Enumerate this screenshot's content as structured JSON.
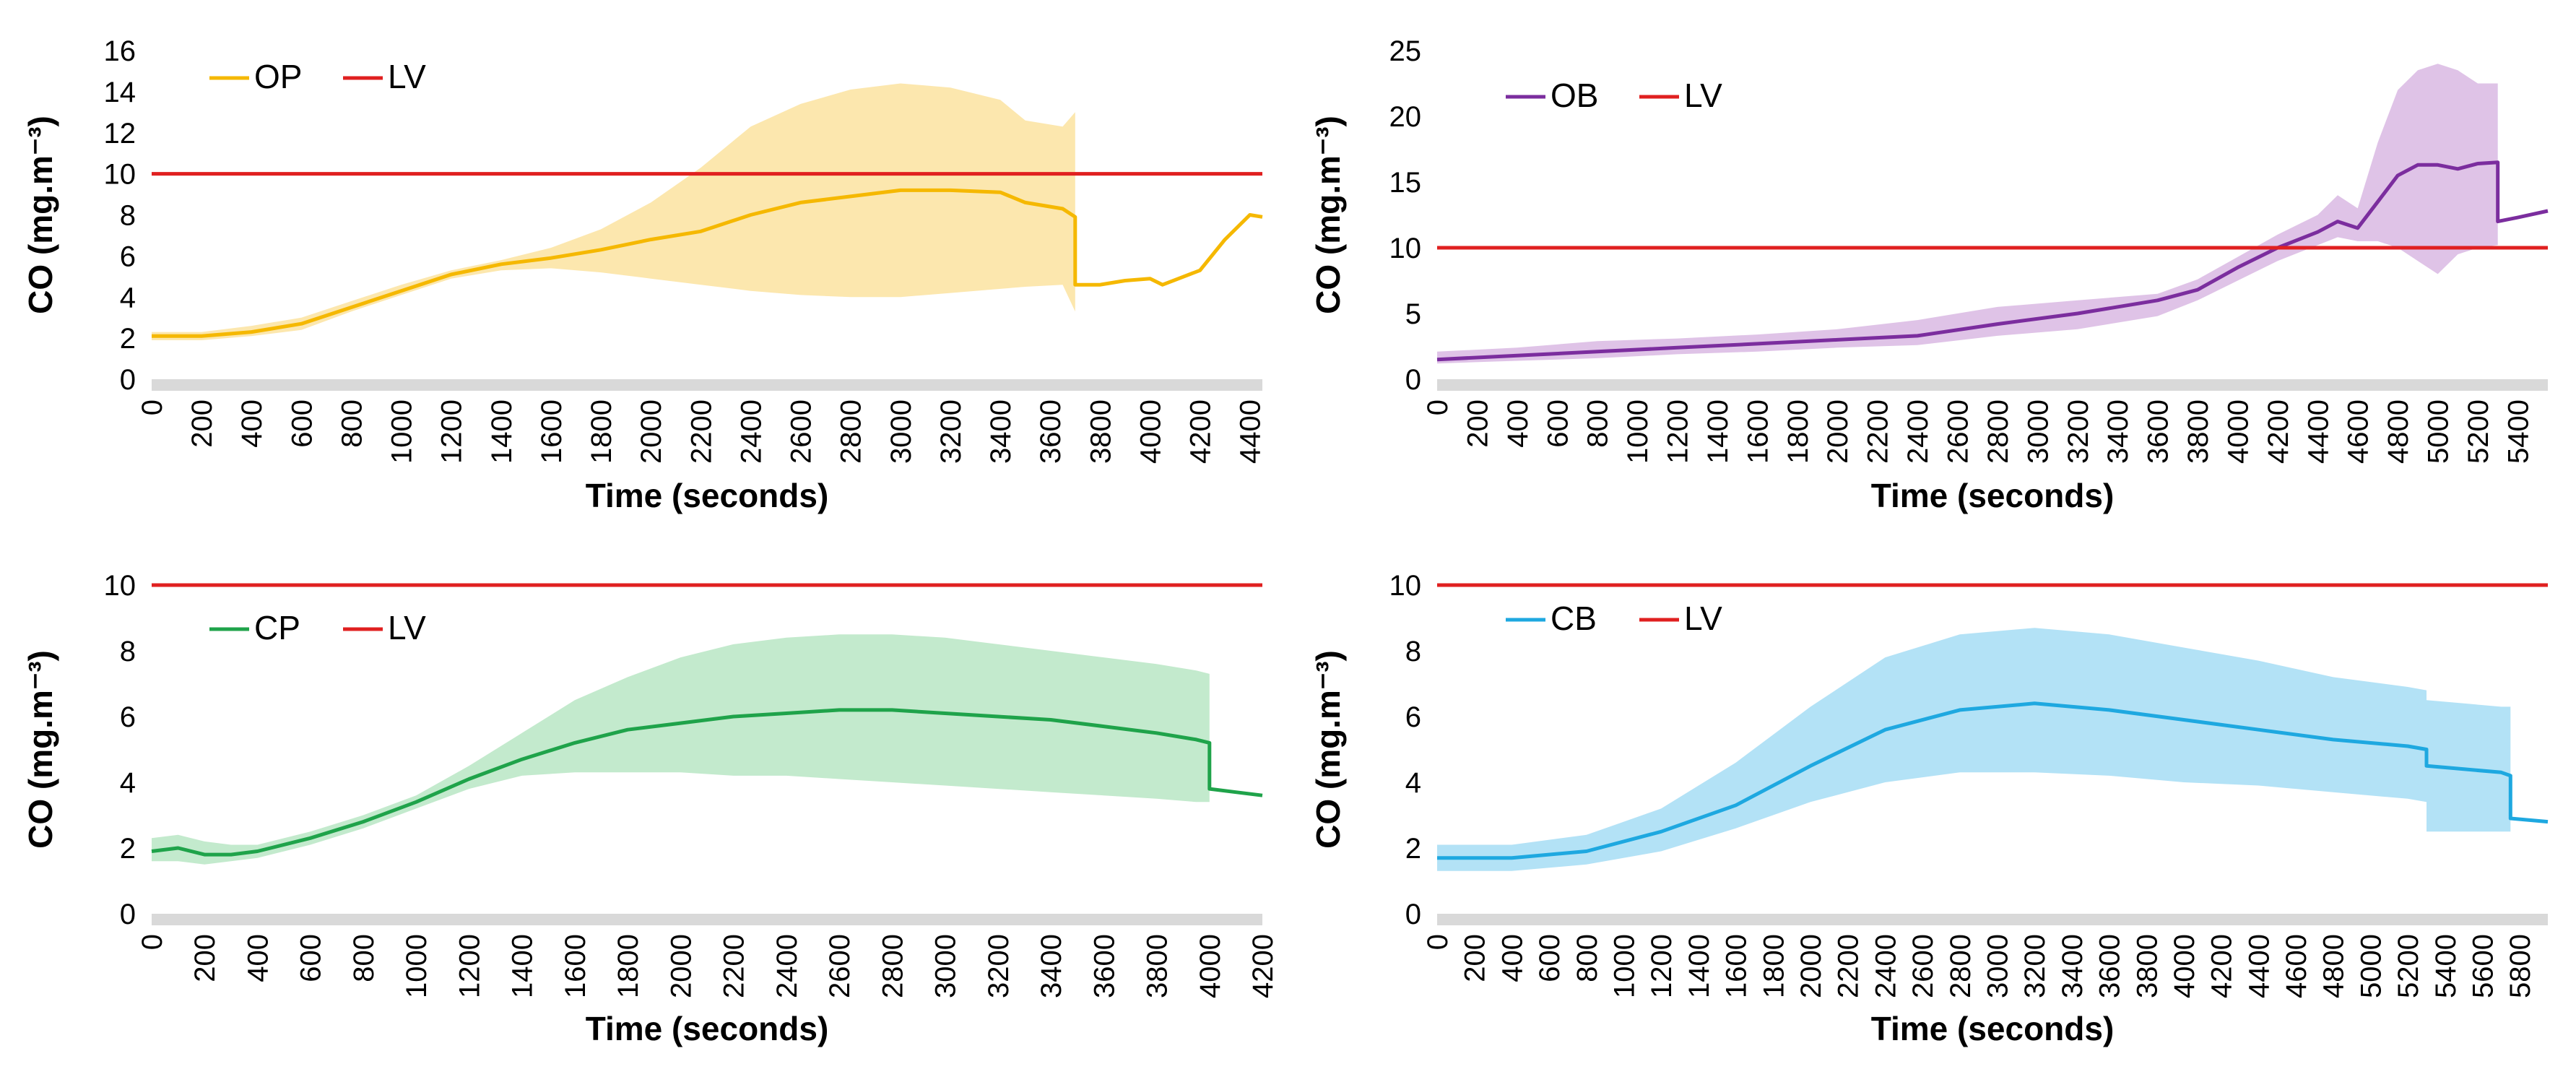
{
  "chart_data": [
    {
      "id": "op",
      "type": "line",
      "xlabel": "Time (seconds)",
      "ylabel": "CO (mg.m⁻³)",
      "xlim": [
        0,
        4450
      ],
      "ylim": [
        0,
        16
      ],
      "x_ticks": [
        "0",
        "200",
        "400",
        "600",
        "800",
        "1000",
        "1200",
        "1400",
        "1600",
        "1800",
        "2000",
        "2200",
        "2400",
        "2600",
        "2800",
        "3000",
        "3200",
        "3400",
        "3600",
        "3800",
        "4000",
        "4200",
        "4400"
      ],
      "y_ticks": [
        "0",
        "2",
        "4",
        "6",
        "8",
        "10",
        "12",
        "14",
        "16"
      ],
      "legend": [
        {
          "label": "OP",
          "color": "#F5B800"
        },
        {
          "label": "LV",
          "color": "#E02020"
        }
      ],
      "limit_value": 10,
      "series": [
        {
          "name": "OP",
          "color": "#F5B800",
          "band_color": "#FCE3A0",
          "x": [
            0,
            200,
            400,
            600,
            800,
            1000,
            1200,
            1400,
            1600,
            1800,
            2000,
            2200,
            2400,
            2600,
            2800,
            3000,
            3200,
            3400,
            3500,
            3650,
            3700,
            3700,
            3800,
            3900,
            4000,
            4050,
            4200,
            4300,
            4400,
            4450
          ],
          "y": [
            2.1,
            2.1,
            2.3,
            2.7,
            3.5,
            4.3,
            5.1,
            5.6,
            5.9,
            6.3,
            6.8,
            7.2,
            8.0,
            8.6,
            8.9,
            9.2,
            9.2,
            9.1,
            8.6,
            8.3,
            7.9,
            4.6,
            4.6,
            4.8,
            4.9,
            4.6,
            5.3,
            6.8,
            8.0,
            7.9
          ],
          "band_low": [
            1.9,
            1.9,
            2.1,
            2.4,
            3.3,
            4.1,
            4.9,
            5.3,
            5.4,
            5.2,
            4.9,
            4.6,
            4.3,
            4.1,
            4.0,
            4.0,
            4.2,
            4.4,
            4.5,
            4.6,
            3.3
          ],
          "band_high": [
            2.3,
            2.3,
            2.6,
            3.0,
            3.8,
            4.6,
            5.3,
            5.8,
            6.4,
            7.3,
            8.6,
            10.3,
            12.3,
            13.4,
            14.1,
            14.4,
            14.2,
            13.6,
            12.6,
            12.3,
            13.0
          ]
        }
      ]
    },
    {
      "id": "ob",
      "type": "line",
      "xlabel": "Time (seconds)",
      "ylabel": "CO (mg.m⁻³)",
      "xlim": [
        0,
        5550
      ],
      "ylim": [
        0,
        25
      ],
      "x_ticks": [
        "0",
        "200",
        "400",
        "600",
        "800",
        "1000",
        "1200",
        "1400",
        "1600",
        "1800",
        "2000",
        "2200",
        "2400",
        "2600",
        "2800",
        "3000",
        "3200",
        "3400",
        "3600",
        "3800",
        "4000",
        "4200",
        "4400",
        "4600",
        "4800",
        "5000",
        "5200",
        "5400"
      ],
      "y_ticks": [
        "0",
        "5",
        "10",
        "15",
        "20",
        "25"
      ],
      "legend": [
        {
          "label": "OB",
          "color": "#7B2D9E"
        },
        {
          "label": "LV",
          "color": "#E02020"
        }
      ],
      "limit_value": 10,
      "series": [
        {
          "name": "OB",
          "color": "#7B2D9E",
          "band_color": "#D9B8E3",
          "x": [
            0,
            400,
            800,
            1200,
            1600,
            2000,
            2400,
            2800,
            3200,
            3600,
            3800,
            4000,
            4200,
            4400,
            4500,
            4600,
            4700,
            4800,
            4900,
            5000,
            5100,
            5200,
            5300,
            5300,
            5400,
            5550
          ],
          "y": [
            1.5,
            1.8,
            2.1,
            2.4,
            2.7,
            3.0,
            3.3,
            4.2,
            5.0,
            6.0,
            6.8,
            8.5,
            10.0,
            11.2,
            12.0,
            11.5,
            13.5,
            15.5,
            16.3,
            16.3,
            16.0,
            16.4,
            16.5,
            12.0,
            12.3,
            12.8
          ],
          "band_low": [
            1.2,
            1.4,
            1.6,
            1.9,
            2.1,
            2.4,
            2.6,
            3.3,
            3.8,
            4.8,
            6.0,
            7.5,
            9.0,
            10.2,
            10.8,
            10.5,
            10.5,
            10.0,
            9.0,
            8.0,
            9.5,
            10.0,
            10.2
          ],
          "band_high": [
            2.1,
            2.4,
            2.9,
            3.1,
            3.4,
            3.8,
            4.5,
            5.5,
            6.0,
            6.5,
            7.6,
            9.3,
            11.0,
            12.5,
            14.0,
            13.0,
            18.0,
            22.0,
            23.5,
            24.0,
            23.5,
            22.5,
            22.5
          ]
        }
      ]
    },
    {
      "id": "cp",
      "type": "line",
      "xlabel": "Time (seconds)",
      "ylabel": "CO (mg.m⁻³)",
      "xlim": [
        0,
        4200
      ],
      "ylim": [
        0,
        10
      ],
      "x_ticks": [
        "0",
        "200",
        "400",
        "600",
        "800",
        "1000",
        "1200",
        "1400",
        "1600",
        "1800",
        "2000",
        "2200",
        "2400",
        "2600",
        "2800",
        "3000",
        "3200",
        "3400",
        "3600",
        "3800",
        "4000",
        "4200"
      ],
      "y_ticks": [
        "0",
        "2",
        "4",
        "6",
        "8",
        "10"
      ],
      "legend": [
        {
          "label": "CP",
          "color": "#1FA34A"
        },
        {
          "label": "LV",
          "color": "#E02020"
        }
      ],
      "limit_value": 10,
      "series": [
        {
          "name": "CP",
          "color": "#1FA34A",
          "band_color": "#B8E6C4",
          "x": [
            0,
            100,
            200,
            300,
            400,
            600,
            800,
            1000,
            1200,
            1400,
            1600,
            1800,
            2000,
            2200,
            2400,
            2600,
            2800,
            3000,
            3200,
            3400,
            3600,
            3800,
            3950,
            4000,
            4000,
            4100,
            4200
          ],
          "y": [
            1.9,
            2.0,
            1.8,
            1.8,
            1.9,
            2.3,
            2.8,
            3.4,
            4.1,
            4.7,
            5.2,
            5.6,
            5.8,
            6.0,
            6.1,
            6.2,
            6.2,
            6.1,
            6.0,
            5.9,
            5.7,
            5.5,
            5.3,
            5.2,
            3.8,
            3.7,
            3.6
          ],
          "band_low": [
            1.6,
            1.6,
            1.5,
            1.6,
            1.7,
            2.1,
            2.6,
            3.2,
            3.8,
            4.2,
            4.3,
            4.3,
            4.3,
            4.2,
            4.2,
            4.1,
            4.0,
            3.9,
            3.8,
            3.7,
            3.6,
            3.5,
            3.4,
            3.4
          ],
          "band_high": [
            2.3,
            2.4,
            2.2,
            2.1,
            2.1,
            2.5,
            3.0,
            3.6,
            4.5,
            5.5,
            6.5,
            7.2,
            7.8,
            8.2,
            8.4,
            8.5,
            8.5,
            8.4,
            8.2,
            8.0,
            7.8,
            7.6,
            7.4,
            7.3
          ]
        }
      ]
    },
    {
      "id": "cb",
      "type": "line",
      "xlabel": "Time (seconds)",
      "ylabel": "CO (mg.m⁻³)",
      "xlim": [
        0,
        5950
      ],
      "ylim": [
        0,
        10
      ],
      "x_ticks": [
        "0",
        "200",
        "400",
        "600",
        "800",
        "1000",
        "1200",
        "1400",
        "1600",
        "1800",
        "2000",
        "2200",
        "2400",
        "2600",
        "2800",
        "3000",
        "3200",
        "3400",
        "3600",
        "3800",
        "4000",
        "4200",
        "4400",
        "4600",
        "4800",
        "5000",
        "5200",
        "5400",
        "5600",
        "5800"
      ],
      "y_ticks": [
        "0",
        "2",
        "4",
        "6",
        "8",
        "10"
      ],
      "legend": [
        {
          "label": "CB",
          "color": "#1EA8E0"
        },
        {
          "label": "LV",
          "color": "#E02020"
        }
      ],
      "limit_value": 10,
      "series": [
        {
          "name": "CB",
          "color": "#1EA8E0",
          "band_color": "#A6DDF5",
          "x": [
            0,
            400,
            800,
            1200,
            1600,
            2000,
            2400,
            2800,
            3200,
            3600,
            4000,
            4400,
            4800,
            5200,
            5300,
            5300,
            5500,
            5700,
            5750,
            5750,
            5950
          ],
          "y": [
            1.7,
            1.7,
            1.9,
            2.5,
            3.3,
            4.5,
            5.6,
            6.2,
            6.4,
            6.2,
            5.9,
            5.6,
            5.3,
            5.1,
            5.0,
            4.5,
            4.4,
            4.3,
            4.2,
            2.9,
            2.8
          ],
          "band_low": [
            1.3,
            1.3,
            1.5,
            1.9,
            2.6,
            3.4,
            4.0,
            4.3,
            4.3,
            4.2,
            4.0,
            3.9,
            3.7,
            3.5,
            3.4,
            2.5,
            2.5,
            2.5,
            2.5
          ],
          "band_high": [
            2.1,
            2.1,
            2.4,
            3.2,
            4.6,
            6.3,
            7.8,
            8.5,
            8.7,
            8.5,
            8.1,
            7.7,
            7.2,
            6.9,
            6.8,
            6.5,
            6.4,
            6.3,
            6.3
          ]
        }
      ]
    }
  ]
}
